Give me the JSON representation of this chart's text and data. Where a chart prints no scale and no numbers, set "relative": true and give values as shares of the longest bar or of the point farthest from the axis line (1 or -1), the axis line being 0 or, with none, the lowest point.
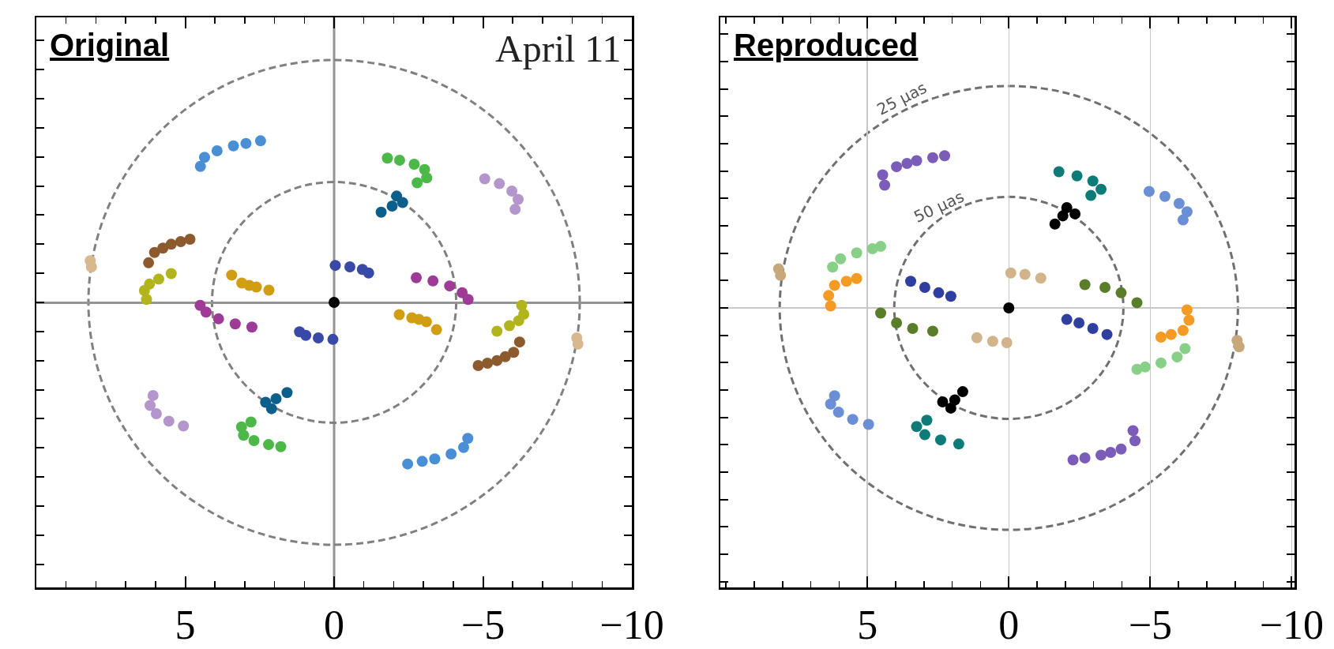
{
  "chart_data": [
    {
      "type": "scatter",
      "relative": true,
      "xlim": [
        10,
        -10
      ],
      "xticks": [
        5,
        0,
        -5,
        -10
      ],
      "tick_labels": "x",
      "marker": "circle",
      "grid": false,
      "annotations": [
        "Original",
        "April 11"
      ],
      "ref_lines": [
        {
          "axis": "x",
          "value": 0,
          "color": "#949494"
        }
      ],
      "series": [
        {
          "color": "#4a8fd6",
          "x": [
            4.49,
            4.35,
            3.93,
            3.38,
            2.96,
            2.47,
            -4.49,
            -4.35,
            -3.93,
            -3.38,
            -2.96,
            -2.47
          ],
          "values": [
            0.842,
            0.898,
            0.938,
            0.969,
            0.984,
            1,
            -0.842,
            -0.898,
            -0.938,
            -0.969,
            -0.984,
            -1
          ]
        },
        {
          "color": "#4cb848",
          "x": [
            -1.79,
            -2.2,
            -2.69,
            -3.04,
            -3.11,
            -2.79,
            1.79,
            2.2,
            2.69,
            3.04,
            3.11,
            2.79
          ],
          "values": [
            0.893,
            0.88,
            0.855,
            0.822,
            0.771,
            0.74,
            -0.893,
            -0.88,
            -0.855,
            -0.822,
            -0.771,
            -0.74
          ]
        },
        {
          "color": "#b495cc",
          "x": [
            -5.06,
            -5.55,
            -5.97,
            -6.18,
            -6.08,
            5.06,
            5.55,
            5.97,
            6.18,
            6.08
          ],
          "values": [
            0.765,
            0.735,
            0.689,
            0.638,
            0.576,
            -0.765,
            -0.735,
            -0.689,
            -0.638,
            -0.576
          ]
        },
        {
          "color": "#0b5f8a",
          "x": [
            -1.58,
            -1.95,
            -2.3,
            -2.1,
            1.58,
            1.95,
            2.3,
            2.1
          ],
          "values": [
            0.558,
            0.596,
            0.618,
            0.658,
            -0.558,
            -0.596,
            -0.618,
            -0.658
          ]
        },
        {
          "color": "#8c5a2c",
          "x": [
            6.23,
            6.03,
            5.75,
            5.47,
            5.15,
            4.84,
            -6.23,
            -6.03,
            -5.75,
            -5.47,
            -5.15,
            -4.84
          ],
          "values": [
            0.245,
            0.309,
            0.336,
            0.36,
            0.376,
            0.391,
            -0.245,
            -0.309,
            -0.336,
            -0.36,
            -0.376,
            -0.391
          ]
        },
        {
          "color": "#d8b88e",
          "x": [
            8.19,
            8.15,
            -8.19,
            -8.15
          ],
          "values": [
            0.258,
            0.22,
            -0.258,
            -0.22
          ]
        },
        {
          "color": "#b2b41c",
          "x": [
            5.47,
            5.89,
            6.2,
            6.37,
            6.3,
            -5.47,
            -5.89,
            -6.2,
            -6.37,
            -6.3
          ],
          "values": [
            0.178,
            0.144,
            0.113,
            0.073,
            0.018,
            -0.178,
            -0.144,
            -0.113,
            -0.073,
            -0.018
          ]
        },
        {
          "color": "#d19e12",
          "x": [
            3.44,
            3.1,
            2.85,
            2.61,
            2.19,
            -3.44,
            -3.1,
            -2.85,
            -2.61,
            -2.19
          ],
          "values": [
            0.169,
            0.12,
            0.105,
            0.095,
            0.076,
            -0.169,
            -0.12,
            -0.105,
            -0.095,
            -0.076
          ]
        },
        {
          "color": "#3949a8",
          "x": [
            -0.04,
            -0.53,
            -0.95,
            -1.16,
            0.04,
            0.53,
            0.95,
            1.16
          ],
          "values": [
            0.229,
            0.22,
            0.204,
            0.182,
            -0.229,
            -0.22,
            -0.204,
            -0.182
          ]
        },
        {
          "color": "#9e3b96",
          "x": [
            -2.76,
            -3.32,
            -3.88,
            -4.3,
            -4.5,
            2.76,
            3.32,
            3.88,
            4.3,
            4.5
          ],
          "values": [
            0.153,
            0.133,
            0.102,
            0.06,
            0.018,
            -0.153,
            -0.133,
            -0.102,
            -0.06,
            -0.018
          ]
        },
        {
          "color": "#000000",
          "x": [
            0
          ],
          "values": [
            0
          ]
        }
      ]
    },
    {
      "type": "scatter",
      "relative": true,
      "xlim": [
        10.2,
        -10.1
      ],
      "xticks": [
        5,
        0,
        -5,
        -10
      ],
      "tick_labels": "x",
      "marker": "circle",
      "grid": "x",
      "annotations": [
        "Reproduced",
        "25 μas",
        "50 μas"
      ],
      "series": [
        {
          "color": "#7b5cb8",
          "x": [
            4.39,
            4.46,
            3.97,
            3.6,
            3.26,
            2.69,
            2.27,
            -4.39,
            -4.46,
            -3.97,
            -3.6,
            -3.26,
            -2.69,
            -2.27
          ],
          "values": [
            0.807,
            0.874,
            0.928,
            0.95,
            0.968,
            0.987,
            1,
            -0.807,
            -0.874,
            -0.928,
            -0.95,
            -0.968,
            -0.987,
            -1
          ]
        },
        {
          "color": "#0f7b78",
          "x": [
            -1.77,
            -2.41,
            -2.97,
            -3.26,
            -2.9,
            1.77,
            2.41,
            2.97,
            3.26,
            2.9
          ],
          "values": [
            0.895,
            0.868,
            0.834,
            0.78,
            0.739,
            -0.895,
            -0.868,
            -0.834,
            -0.78,
            -0.739
          ]
        },
        {
          "color": "#000000",
          "x": [
            -1.63,
            -1.91,
            -2.34,
            -2.05,
            1.63,
            1.91,
            2.34,
            2.05
          ],
          "values": [
            0.551,
            0.605,
            0.618,
            0.659,
            -0.551,
            -0.605,
            -0.618,
            -0.659
          ]
        },
        {
          "color": "#6a8fd6",
          "x": [
            -4.96,
            -5.52,
            -6.02,
            -6.3,
            -6.16,
            4.96,
            5.52,
            6.02,
            6.3,
            6.16
          ],
          "values": [
            0.766,
            0.733,
            0.686,
            0.632,
            0.578,
            -0.766,
            -0.733,
            -0.686,
            -0.632,
            -0.578
          ]
        },
        {
          "color": "#88cf88",
          "x": [
            6.23,
            5.95,
            5.38,
            4.82,
            4.53,
            -6.23,
            -5.95,
            -5.38,
            -4.82,
            -4.53
          ],
          "values": [
            0.268,
            0.323,
            0.362,
            0.389,
            0.404,
            -0.268,
            -0.323,
            -0.362,
            -0.389,
            -0.404
          ]
        },
        {
          "color": "#f59a23",
          "x": [
            6.3,
            6.37,
            6.16,
            5.74,
            5.38,
            -6.3,
            -6.37,
            -6.16,
            -5.74,
            -5.38
          ],
          "values": [
            0.013,
            0.081,
            0.148,
            0.175,
            0.193,
            -0.013,
            -0.081,
            -0.148,
            -0.175,
            -0.193
          ]
        },
        {
          "color": "#c8a87a",
          "x": [
            8.07,
            8.14,
            -8.07,
            -8.14
          ],
          "values": [
            0.214,
            0.256,
            -0.214,
            -0.256
          ]
        },
        {
          "color": "#2e3fa0",
          "x": [
            3.47,
            2.97,
            2.48,
            2.05,
            -3.47,
            -2.97,
            -2.48,
            -2.05
          ],
          "values": [
            0.175,
            0.135,
            0.099,
            0.076,
            -0.175,
            -0.135,
            -0.099,
            -0.076
          ]
        },
        {
          "color": "#d2b48c",
          "x": [
            -0.07,
            -0.57,
            -1.13,
            0.07,
            0.57,
            1.13
          ],
          "values": [
            0.229,
            0.22,
            0.196,
            -0.229,
            -0.22,
            -0.196
          ]
        },
        {
          "color": "#5a7d2a",
          "x": [
            -2.69,
            -3.4,
            -3.97,
            -4.53,
            2.69,
            3.4,
            3.97,
            4.53
          ],
          "values": [
            0.153,
            0.135,
            0.099,
            0.034,
            -0.153,
            -0.135,
            -0.099,
            -0.034
          ]
        },
        {
          "color": "#000000",
          "x": [
            0
          ],
          "values": [
            0
          ]
        }
      ]
    }
  ]
}
